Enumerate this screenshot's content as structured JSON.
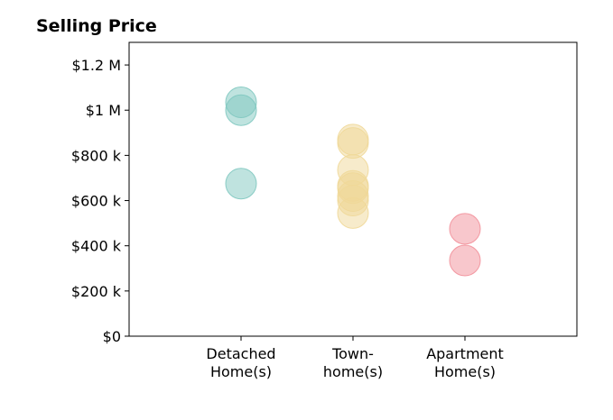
{
  "chart_data": {
    "type": "scatter",
    "title": "Selling Price",
    "xlabel": "",
    "ylabel": "",
    "categories": [
      [
        "Detached",
        "Home(s)"
      ],
      [
        "Town-",
        "home(s)"
      ],
      [
        "Apartment",
        "Home(s)"
      ]
    ],
    "xlim": [
      0,
      4
    ],
    "ylim": [
      0,
      1300000
    ],
    "yticks": [
      0,
      200000,
      400000,
      600000,
      800000,
      1000000,
      1200000
    ],
    "ytick_labels": [
      "$0",
      "$200 k",
      "$400 k",
      "$600 k",
      "$800 k",
      "$1 M",
      "$1.2 M"
    ],
    "grid": false,
    "legend": "none",
    "series": [
      {
        "category": "Detached Home(s)",
        "x": 1,
        "values": [
          1035000,
          1000000,
          675000
        ],
        "color": "#7fc8c0"
      },
      {
        "category": "Town-home(s)",
        "x": 2,
        "values": [
          870000,
          855000,
          735000,
          665000,
          655000,
          620000,
          600000,
          545000
        ],
        "color": "#f0d898"
      },
      {
        "category": "Apartment Home(s)",
        "x": 3,
        "values": [
          475000,
          335000
        ],
        "color": "#f2909a"
      }
    ]
  }
}
